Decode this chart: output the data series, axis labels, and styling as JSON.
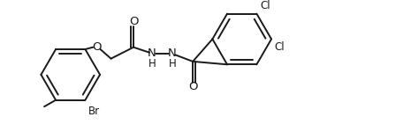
{
  "bg_color": "#ffffff",
  "line_color": "#1a1a1a",
  "text_color": "#1a1a1a",
  "line_width": 1.4,
  "font_size": 8.5,
  "figsize": [
    4.65,
    1.58
  ],
  "dpi": 100,
  "xlim": [
    0,
    9.3
  ],
  "ylim": [
    0,
    3.16
  ]
}
